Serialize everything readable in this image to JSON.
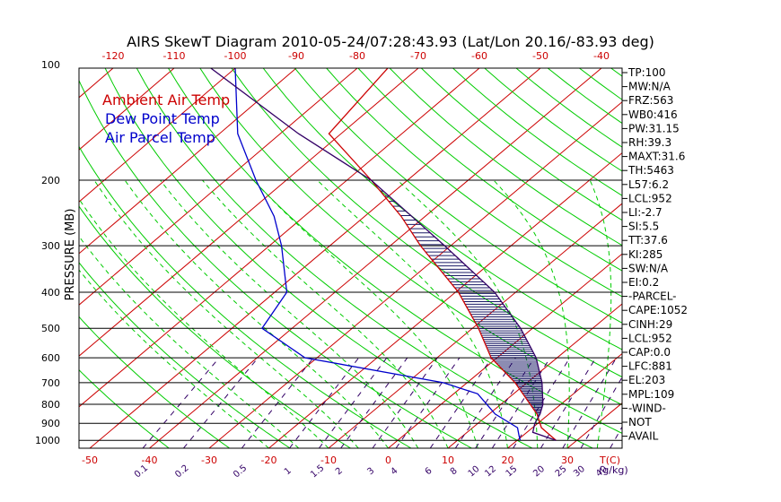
{
  "chart_data": {
    "type": "line",
    "title": "AIRS SkewT Diagram 2010-05-24/07:28:43.93 (Lat/Lon 20.16/-83.93 deg)",
    "ylabel": "PRESSURE (MB)",
    "x_unit_label": "T(C)",
    "mixing_ratio_unit_label": "(g/kg)",
    "ylim": [
      1050,
      100
    ],
    "y_scale": "log",
    "skewed_temperature_lines_step_c": 10,
    "y_tick_labels": [
      "100",
      "200",
      "300",
      "400",
      "500",
      "600",
      "700",
      "800",
      "900",
      "1000"
    ],
    "pressure_levels": [
      100,
      200,
      300,
      400,
      500,
      600,
      700,
      800,
      900,
      1000
    ],
    "top_temperature_ticks": [
      "-120",
      "-110",
      "-100",
      "-90",
      "-80",
      "-70",
      "-60",
      "-50",
      "-40"
    ],
    "top_temperature_values": [
      -120,
      -110,
      -100,
      -90,
      -80,
      -70,
      -60,
      -50,
      -40
    ],
    "bottom_temperature_ticks": [
      "-50",
      "-40",
      "-30",
      "-20",
      "-10",
      "0",
      "10",
      "20",
      "30"
    ],
    "bottom_temperature_values": [
      -50,
      -40,
      -30,
      -20,
      -10,
      0,
      10,
      20,
      30
    ],
    "mixing_ratio_ticks": [
      "0.1",
      "0.2",
      "0.5",
      "1",
      "1.5",
      "2",
      "3",
      "4",
      "6",
      "8",
      "10",
      "12",
      "15",
      "20",
      "25",
      "30",
      "40"
    ],
    "mixing_ratio_values": [
      0.1,
      0.2,
      0.5,
      1,
      1.5,
      2,
      3,
      4,
      6,
      8,
      10,
      12,
      15,
      20,
      25,
      30,
      40
    ],
    "legend": [
      {
        "label": "Ambient Air Temp",
        "color": "#cc0000"
      },
      {
        "label": "Dew Point Temp",
        "color": "#0000cc"
      },
      {
        "label": "Air Parcel Temp",
        "color": "#330066"
      }
    ],
    "series": [
      {
        "name": "Ambient Air Temp",
        "color": "#cc0000",
        "points": [
          {
            "p": 1000,
            "t": 26.5
          },
          {
            "p": 925,
            "t": 21.5
          },
          {
            "p": 850,
            "t": 18
          },
          {
            "p": 700,
            "t": 8
          },
          {
            "p": 600,
            "t": -1
          },
          {
            "p": 500,
            "t": -9
          },
          {
            "p": 400,
            "t": -19.5
          },
          {
            "p": 300,
            "t": -35
          },
          {
            "p": 250,
            "t": -44
          },
          {
            "p": 200,
            "t": -56
          },
          {
            "p": 150,
            "t": -72
          },
          {
            "p": 100,
            "t": -75
          }
        ]
      },
      {
        "name": "Dew Point Temp",
        "color": "#0000cc",
        "points": [
          {
            "p": 1000,
            "t": 20.5
          },
          {
            "p": 975,
            "t": 19.5
          },
          {
            "p": 925,
            "t": 17.5
          },
          {
            "p": 850,
            "t": 11
          },
          {
            "p": 750,
            "t": 4
          },
          {
            "p": 700,
            "t": -4
          },
          {
            "p": 600,
            "t": -32
          },
          {
            "p": 500,
            "t": -45
          },
          {
            "p": 400,
            "t": -48
          },
          {
            "p": 300,
            "t": -58
          },
          {
            "p": 250,
            "t": -65
          },
          {
            "p": 200,
            "t": -75
          },
          {
            "p": 150,
            "t": -87
          },
          {
            "p": 100,
            "t": -100
          }
        ]
      },
      {
        "name": "Air Parcel Temp",
        "color": "#330066",
        "points": [
          {
            "p": 1000,
            "t": 26.5
          },
          {
            "p": 952,
            "t": 21
          },
          {
            "p": 900,
            "t": 19.5
          },
          {
            "p": 850,
            "t": 18.5
          },
          {
            "p": 800,
            "t": 17
          },
          {
            "p": 700,
            "t": 12.5
          },
          {
            "p": 600,
            "t": 6.5
          },
          {
            "p": 500,
            "t": -2
          },
          {
            "p": 400,
            "t": -13.5
          },
          {
            "p": 300,
            "t": -31
          },
          {
            "p": 200,
            "t": -56
          },
          {
            "p": 150,
            "t": -77
          },
          {
            "p": 100,
            "t": -104
          }
        ]
      }
    ],
    "positive_area_hatch_color": "#1a1a66",
    "isotherm_color": "#cc0000",
    "dry_adiabat_color": "#00cc00",
    "moist_adiabat_color": "#00cc00",
    "mixing_ratio_line_color": "#330066",
    "grid": true
  },
  "indices": [
    "TP:100",
    "MW:N/A",
    "FRZ:563",
    "WB0:416",
    "PW:31.15",
    "RH:39.3",
    "MAXT:31.6",
    "TH:5463",
    "L57:6.2",
    "LCL:952",
    "LI:-2.7",
    "SI:5.5",
    "TT:37.6",
    "KI:285",
    "SW:N/A",
    "EI:0.2",
    "-PARCEL-",
    "CAPE:1052",
    "CINH:29",
    "LCL:952",
    "CAP:0.0",
    "LFC:881",
    "EL:203",
    "MPL:109",
    "-WIND-",
    "NOT",
    "AVAIL"
  ]
}
